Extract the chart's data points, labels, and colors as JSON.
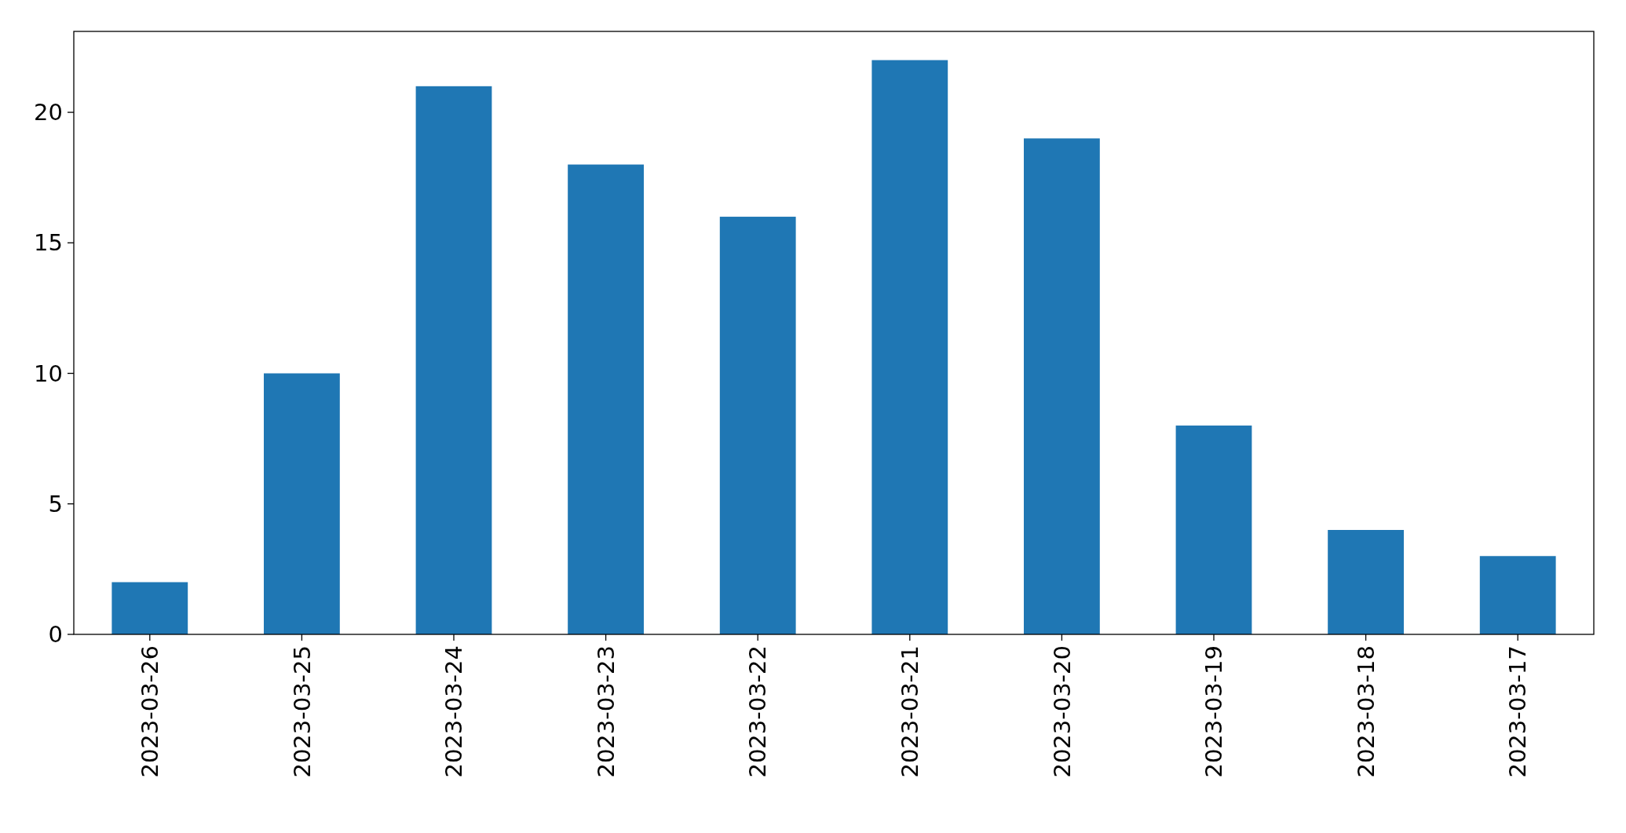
{
  "chart_data": {
    "type": "bar",
    "categories": [
      "2023-03-26",
      "2023-03-25",
      "2023-03-24",
      "2023-03-23",
      "2023-03-22",
      "2023-03-21",
      "2023-03-20",
      "2023-03-19",
      "2023-03-18",
      "2023-03-17"
    ],
    "values": [
      2,
      10,
      21,
      18,
      16,
      22,
      19,
      8,
      4,
      3
    ],
    "color": "#1f77b4",
    "ylim": [
      0,
      23.1
    ],
    "yticks": [
      0,
      5,
      10,
      15,
      20
    ],
    "grid": false
  }
}
